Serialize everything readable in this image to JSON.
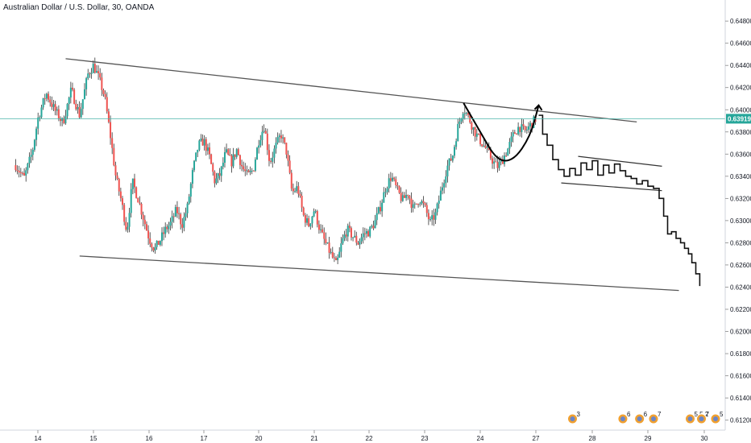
{
  "header": {
    "title": "Australian Dollar / U.S. Dollar, 30, OANDA"
  },
  "colors": {
    "up": "#26a69a",
    "down": "#ef5350",
    "wick": "#333333",
    "drawing": "#1f1f1f",
    "current_line": "#4db6ac",
    "price_tag_bg": "#26a69a",
    "axis_border": "#d1d4dc",
    "event_badge": "#f0a030"
  },
  "chart_data": {
    "type": "candlestick",
    "title": "Australian Dollar / U.S. Dollar, 30, OANDA",
    "symbol": "AUDUSD",
    "timeframe": "30",
    "source": "OANDA",
    "current_price": 0.63919,
    "current_price_label": "0.63919",
    "ylim": [
      0.6111,
      0.6499
    ],
    "y_ticks": [
      "0.64800",
      "0.64600",
      "0.64400",
      "0.64200",
      "0.64000",
      "0.63800",
      "0.63600",
      "0.63400",
      "0.63200",
      "0.63000",
      "0.62800",
      "0.62600",
      "0.62400",
      "0.62200",
      "0.62000",
      "0.61800",
      "0.61600",
      "0.61400",
      "0.61200"
    ],
    "x_ticks": [
      "14",
      "15",
      "16",
      "17",
      "20",
      "21",
      "22",
      "23",
      "24",
      "27",
      "28",
      "29",
      "30"
    ],
    "x_tick_day_index": [
      0,
      1,
      2,
      3,
      4,
      5,
      6,
      7,
      8,
      9,
      10,
      11,
      12
    ],
    "price_path": [
      {
        "d": -0.4,
        "p": 0.635
      },
      {
        "d": -0.25,
        "p": 0.6338
      },
      {
        "d": -0.1,
        "p": 0.6362
      },
      {
        "d": 0.0,
        "p": 0.6392
      },
      {
        "d": 0.15,
        "p": 0.6415
      },
      {
        "d": 0.3,
        "p": 0.64
      },
      {
        "d": 0.45,
        "p": 0.6388
      },
      {
        "d": 0.6,
        "p": 0.6418
      },
      {
        "d": 0.75,
        "p": 0.6395
      },
      {
        "d": 0.9,
        "p": 0.6432
      },
      {
        "d": 1.0,
        "p": 0.644
      },
      {
        "d": 1.1,
        "p": 0.6428
      },
      {
        "d": 1.2,
        "p": 0.6412
      },
      {
        "d": 1.3,
        "p": 0.6378
      },
      {
        "d": 1.4,
        "p": 0.634
      },
      {
        "d": 1.5,
        "p": 0.6318
      },
      {
        "d": 1.6,
        "p": 0.629
      },
      {
        "d": 1.7,
        "p": 0.6335
      },
      {
        "d": 1.8,
        "p": 0.632
      },
      {
        "d": 1.9,
        "p": 0.6302
      },
      {
        "d": 2.0,
        "p": 0.6284
      },
      {
        "d": 2.1,
        "p": 0.6274
      },
      {
        "d": 2.2,
        "p": 0.6282
      },
      {
        "d": 2.3,
        "p": 0.6292
      },
      {
        "d": 2.4,
        "p": 0.6298
      },
      {
        "d": 2.5,
        "p": 0.631
      },
      {
        "d": 2.6,
        "p": 0.6296
      },
      {
        "d": 2.7,
        "p": 0.6312
      },
      {
        "d": 2.8,
        "p": 0.6345
      },
      {
        "d": 2.9,
        "p": 0.6368
      },
      {
        "d": 3.0,
        "p": 0.6372
      },
      {
        "d": 3.1,
        "p": 0.6358
      },
      {
        "d": 3.2,
        "p": 0.6335
      },
      {
        "d": 3.3,
        "p": 0.6342
      },
      {
        "d": 3.4,
        "p": 0.6362
      },
      {
        "d": 3.5,
        "p": 0.6352
      },
      {
        "d": 3.6,
        "p": 0.6364
      },
      {
        "d": 3.7,
        "p": 0.6348
      },
      {
        "d": 3.8,
        "p": 0.634
      },
      {
        "d": 3.9,
        "p": 0.6346
      },
      {
        "d": 4.0,
        "p": 0.6372
      },
      {
        "d": 4.1,
        "p": 0.6386
      },
      {
        "d": 4.2,
        "p": 0.6352
      },
      {
        "d": 4.3,
        "p": 0.6366
      },
      {
        "d": 4.4,
        "p": 0.6378
      },
      {
        "d": 4.5,
        "p": 0.6362
      },
      {
        "d": 4.6,
        "p": 0.6325
      },
      {
        "d": 4.7,
        "p": 0.633
      },
      {
        "d": 4.8,
        "p": 0.6305
      },
      {
        "d": 4.9,
        "p": 0.6296
      },
      {
        "d": 5.0,
        "p": 0.631
      },
      {
        "d": 5.1,
        "p": 0.6292
      },
      {
        "d": 5.2,
        "p": 0.628
      },
      {
        "d": 5.3,
        "p": 0.627
      },
      {
        "d": 5.4,
        "p": 0.626
      },
      {
        "d": 5.45,
        "p": 0.6268
      },
      {
        "d": 5.5,
        "p": 0.628
      },
      {
        "d": 5.6,
        "p": 0.6292
      },
      {
        "d": 5.7,
        "p": 0.6286
      },
      {
        "d": 5.8,
        "p": 0.628
      },
      {
        "d": 5.9,
        "p": 0.6288
      },
      {
        "d": 6.0,
        "p": 0.629
      },
      {
        "d": 6.1,
        "p": 0.6298
      },
      {
        "d": 6.2,
        "p": 0.6312
      },
      {
        "d": 6.3,
        "p": 0.633
      },
      {
        "d": 6.4,
        "p": 0.634
      },
      {
        "d": 6.5,
        "p": 0.6328
      },
      {
        "d": 6.6,
        "p": 0.6318
      },
      {
        "d": 6.7,
        "p": 0.6325
      },
      {
        "d": 6.8,
        "p": 0.631
      },
      {
        "d": 6.9,
        "p": 0.632
      },
      {
        "d": 7.0,
        "p": 0.6312
      },
      {
        "d": 7.1,
        "p": 0.6298
      },
      {
        "d": 7.2,
        "p": 0.6306
      },
      {
        "d": 7.3,
        "p": 0.6328
      },
      {
        "d": 7.4,
        "p": 0.6348
      },
      {
        "d": 7.5,
        "p": 0.6358
      },
      {
        "d": 7.6,
        "p": 0.6385
      },
      {
        "d": 7.7,
        "p": 0.6402
      },
      {
        "d": 7.8,
        "p": 0.6392
      },
      {
        "d": 7.9,
        "p": 0.638
      },
      {
        "d": 8.0,
        "p": 0.6372
      },
      {
        "d": 8.1,
        "p": 0.6365
      },
      {
        "d": 8.2,
        "p": 0.6356
      },
      {
        "d": 8.3,
        "p": 0.6348
      },
      {
        "d": 8.4,
        "p": 0.6355
      },
      {
        "d": 8.5,
        "p": 0.6365
      },
      {
        "d": 8.6,
        "p": 0.6378
      },
      {
        "d": 8.7,
        "p": 0.6385
      },
      {
        "d": 8.8,
        "p": 0.638
      },
      {
        "d": 8.9,
        "p": 0.6386
      },
      {
        "d": 9.0,
        "p": 0.6392
      }
    ],
    "drawings": {
      "upper_trendline": [
        {
          "d": 0.5,
          "p": 0.6446
        },
        {
          "d": 10.8,
          "p": 0.6389
        }
      ],
      "lower_trendline": [
        {
          "d": 0.75,
          "p": 0.6268
        },
        {
          "d": 11.55,
          "p": 0.6237
        }
      ],
      "cup_curve": [
        {
          "d": 7.7,
          "p": 0.6406
        },
        {
          "d": 8.0,
          "p": 0.638
        },
        {
          "d": 8.3,
          "p": 0.6354
        },
        {
          "d": 8.6,
          "p": 0.6354
        },
        {
          "d": 8.9,
          "p": 0.6376
        },
        {
          "d": 9.05,
          "p": 0.6404
        }
      ],
      "flag_upper": [
        {
          "d": 9.75,
          "p": 0.6358
        },
        {
          "d": 11.25,
          "p": 0.6349
        }
      ],
      "flag_lower": [
        {
          "d": 9.45,
          "p": 0.6334
        },
        {
          "d": 11.25,
          "p": 0.6327
        }
      ],
      "projection_path": [
        {
          "d": 9.05,
          "p": 0.6395
        },
        {
          "d": 9.12,
          "p": 0.6378
        },
        {
          "d": 9.2,
          "p": 0.6368
        },
        {
          "d": 9.3,
          "p": 0.6355
        },
        {
          "d": 9.4,
          "p": 0.6346
        },
        {
          "d": 9.5,
          "p": 0.634
        },
        {
          "d": 9.6,
          "p": 0.6347
        },
        {
          "d": 9.7,
          "p": 0.6341
        },
        {
          "d": 9.8,
          "p": 0.6352
        },
        {
          "d": 9.9,
          "p": 0.6346
        },
        {
          "d": 10.0,
          "p": 0.6354
        },
        {
          "d": 10.1,
          "p": 0.6341
        },
        {
          "d": 10.2,
          "p": 0.635
        },
        {
          "d": 10.3,
          "p": 0.6343
        },
        {
          "d": 10.4,
          "p": 0.6351
        },
        {
          "d": 10.5,
          "p": 0.6345
        },
        {
          "d": 10.6,
          "p": 0.634
        },
        {
          "d": 10.7,
          "p": 0.6338
        },
        {
          "d": 10.8,
          "p": 0.6333
        },
        {
          "d": 10.9,
          "p": 0.6336
        },
        {
          "d": 11.0,
          "p": 0.6331
        },
        {
          "d": 11.1,
          "p": 0.6329
        },
        {
          "d": 11.2,
          "p": 0.632
        },
        {
          "d": 11.28,
          "p": 0.6304
        },
        {
          "d": 11.35,
          "p": 0.6288
        },
        {
          "d": 11.42,
          "p": 0.629
        },
        {
          "d": 11.5,
          "p": 0.6284
        },
        {
          "d": 11.58,
          "p": 0.628
        },
        {
          "d": 11.65,
          "p": 0.6275
        },
        {
          "d": 11.72,
          "p": 0.627
        },
        {
          "d": 11.78,
          "p": 0.6262
        },
        {
          "d": 11.85,
          "p": 0.6252
        },
        {
          "d": 11.92,
          "p": 0.6241
        }
      ]
    },
    "event_badges": [
      {
        "d": 9.65,
        "label": "3"
      },
      {
        "d": 10.55,
        "label": "6"
      },
      {
        "d": 10.85,
        "label": "6"
      },
      {
        "d": 11.1,
        "label": "7"
      },
      {
        "d": 11.75,
        "label": "5 5 2"
      },
      {
        "d": 11.95,
        "label": "7"
      },
      {
        "d": 12.2,
        "label": "5"
      }
    ],
    "grid": false
  }
}
